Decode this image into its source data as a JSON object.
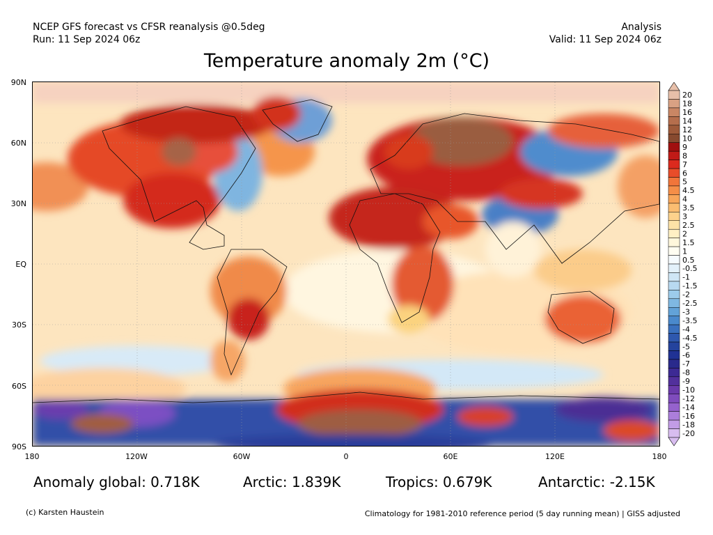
{
  "header": {
    "left_line1": "NCEP GFS forecast vs CFSR reanalysis @0.5deg",
    "left_line2": "Run: 11 Sep 2024 06z",
    "right_line1": "Analysis",
    "right_line2": "Valid: 11 Sep 2024 06z"
  },
  "title": "Temperature anomaly 2m (°C)",
  "axes": {
    "lat_labels": [
      "90N",
      "60N",
      "30N",
      "EQ",
      "30S",
      "60S",
      "90S"
    ],
    "lon_labels": [
      "180",
      "120W",
      "60W",
      "0",
      "60E",
      "120E",
      "180"
    ]
  },
  "colorbar": {
    "labels": [
      "20",
      "18",
      "16",
      "14",
      "12",
      "10",
      "9",
      "8",
      "7",
      "6",
      "5",
      "4.5",
      "4",
      "3.5",
      "3",
      "2.5",
      "2",
      "1.5",
      "1",
      "0.5",
      "-0.5",
      "-1",
      "-1.5",
      "-2",
      "-2.5",
      "-3",
      "-3.5",
      "-4",
      "-4.5",
      "-5",
      "-6",
      "-7",
      "-8",
      "-9",
      "-10",
      "-12",
      "-14",
      "-16",
      "-18",
      "-20"
    ],
    "colors": [
      "#e7bfa9",
      "#d9a183",
      "#c98664",
      "#b56e4d",
      "#9e5a3a",
      "#874a2f",
      "#a0100f",
      "#c01a17",
      "#dc2a1e",
      "#e84d2a",
      "#f1753a",
      "#f58e48",
      "#f8a65a",
      "#fbbd71",
      "#fdd28c",
      "#fee3a8",
      "#fff0c4",
      "#fff7dc",
      "#fffdf2",
      "#f6fbff",
      "#e3f1fb",
      "#cfe6f6",
      "#b8d9f1",
      "#9ccbeb",
      "#7fb8e2",
      "#62a2d8",
      "#4a89cc",
      "#3a70be",
      "#2e58ae",
      "#24439d",
      "#203294",
      "#2a2a8c",
      "#3d2a94",
      "#52309c",
      "#6a3aab",
      "#7f4cbd",
      "#9562cd",
      "#ab7edb",
      "#c29ce6",
      "#d8bdf0"
    ]
  },
  "stats": {
    "global": "Anomaly global: 0.718K",
    "arctic": "Arctic: 1.839K",
    "tropics": "Tropics: 0.679K",
    "antarctic": "Antarctic: -2.15K"
  },
  "footer": {
    "credit": "(c) Karsten Haustein",
    "note": "Climatology for 1981-2010 reference period (5 day running mean) | GISS adjusted"
  }
}
